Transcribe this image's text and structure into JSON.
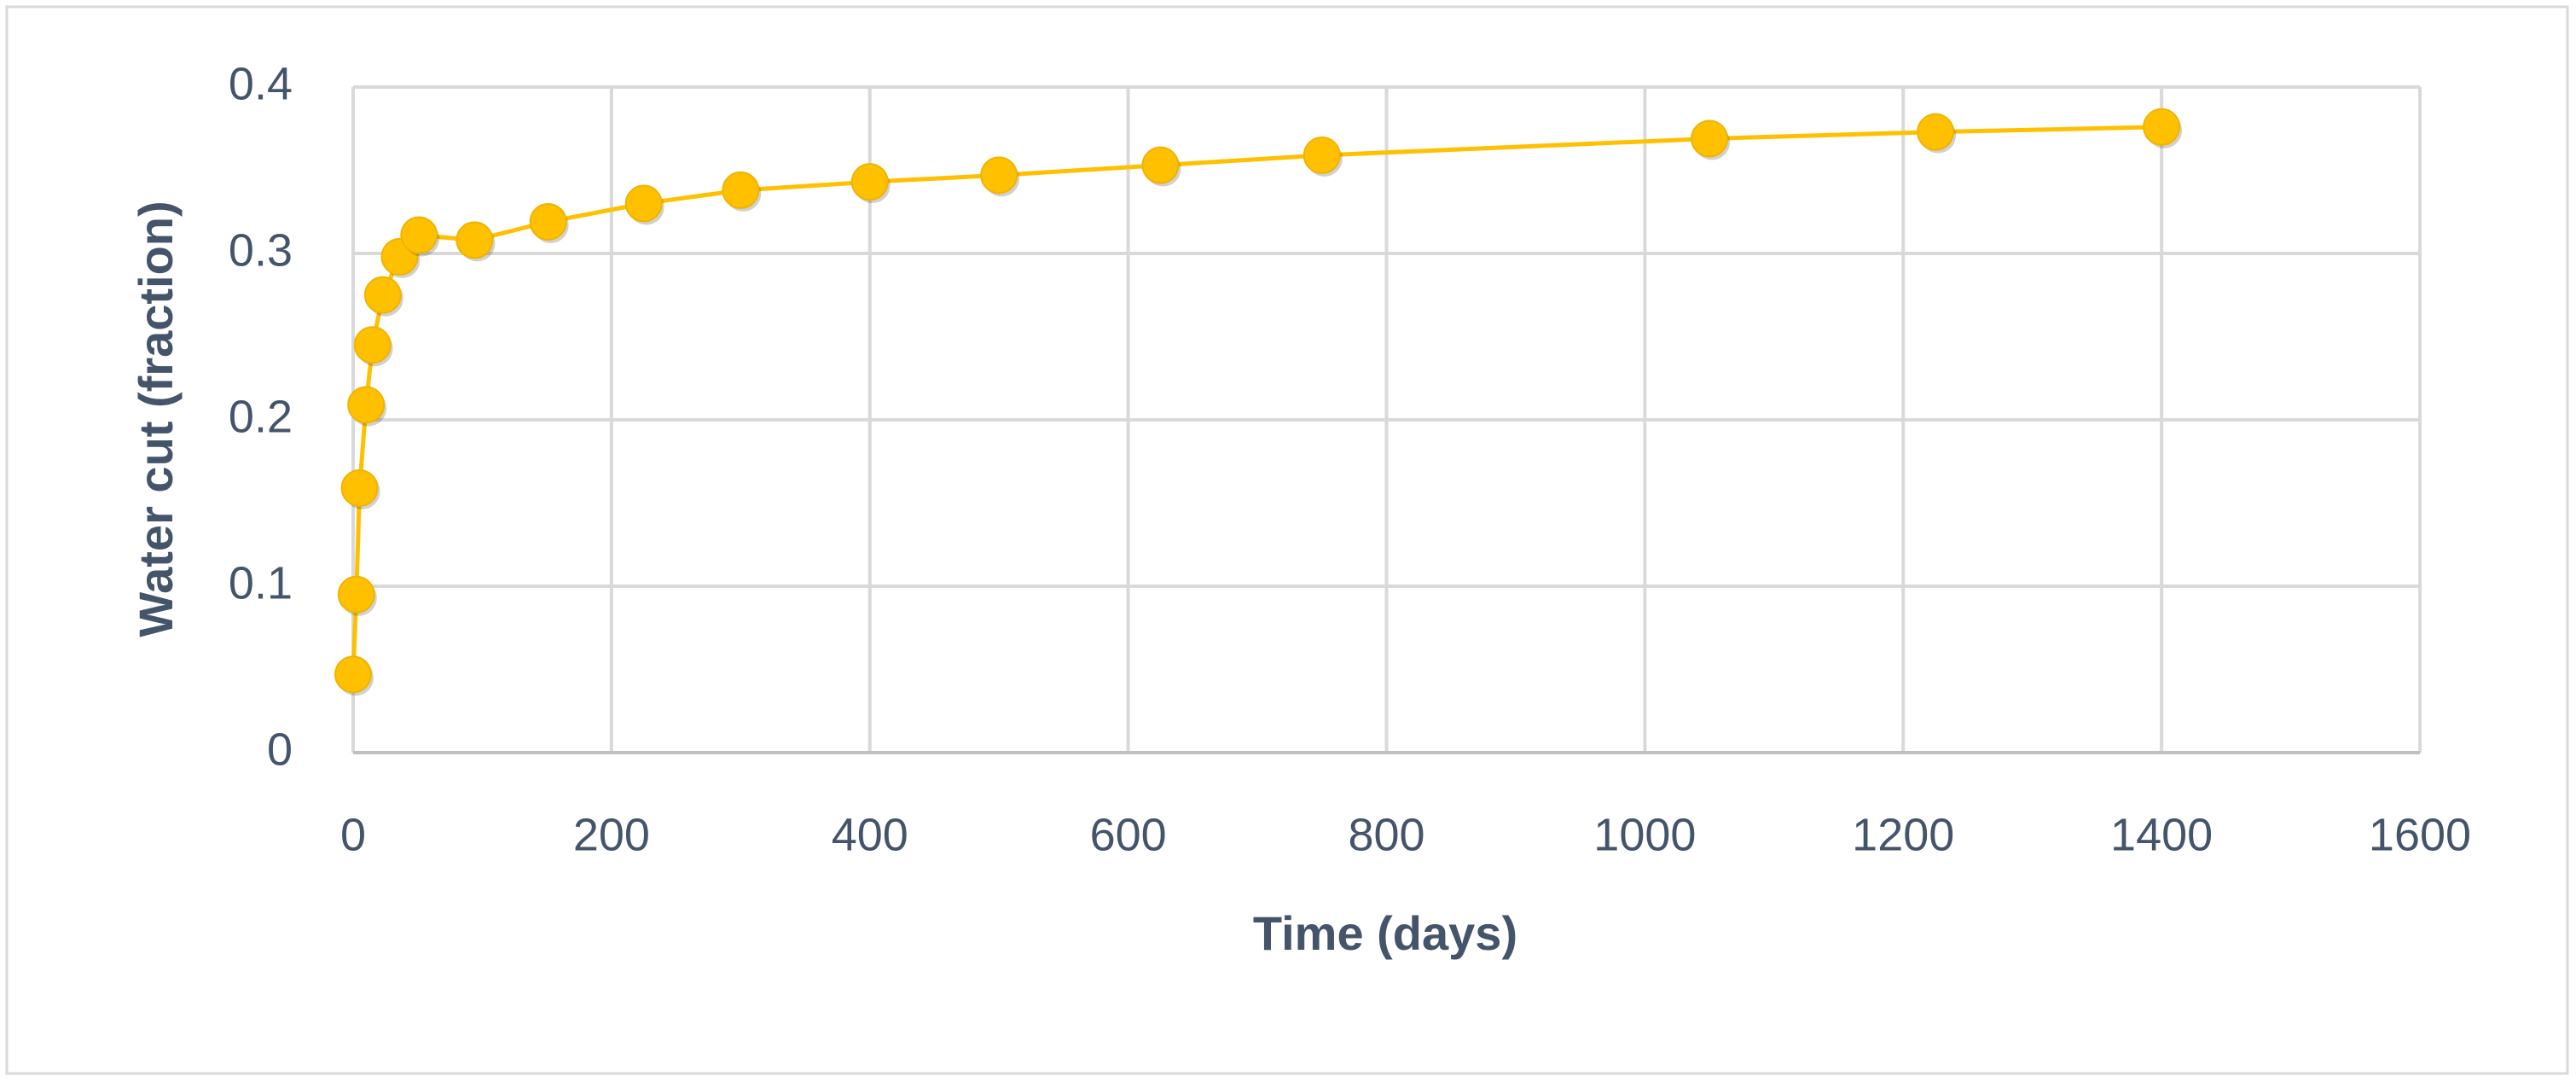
{
  "chart_data": {
    "type": "scatter",
    "x_label": "Time (days)",
    "y_label": "Water cut (fraction)",
    "series": [
      {
        "color": "#ffc000",
        "x": [
          0,
          2.5,
          5,
          10,
          15,
          23,
          36,
          51,
          94,
          151,
          225,
          300,
          400,
          500,
          625,
          750,
          1050,
          1225,
          1400
        ],
        "values": [
          0.047,
          0.095,
          0.159,
          0.209,
          0.245,
          0.275,
          0.298,
          0.311,
          0.308,
          0.319,
          0.33,
          0.338,
          0.343,
          0.347,
          0.353,
          0.359,
          0.369,
          0.373,
          0.376
        ]
      }
    ],
    "xlim": [
      0,
      1600
    ],
    "xticks": [
      0,
      200,
      400,
      600,
      800,
      1000,
      1200,
      1400,
      1600
    ],
    "ylim": [
      0,
      0.4
    ],
    "yticks": [
      0,
      0.1,
      0.2,
      0.3,
      0.4
    ],
    "grid": true
  }
}
